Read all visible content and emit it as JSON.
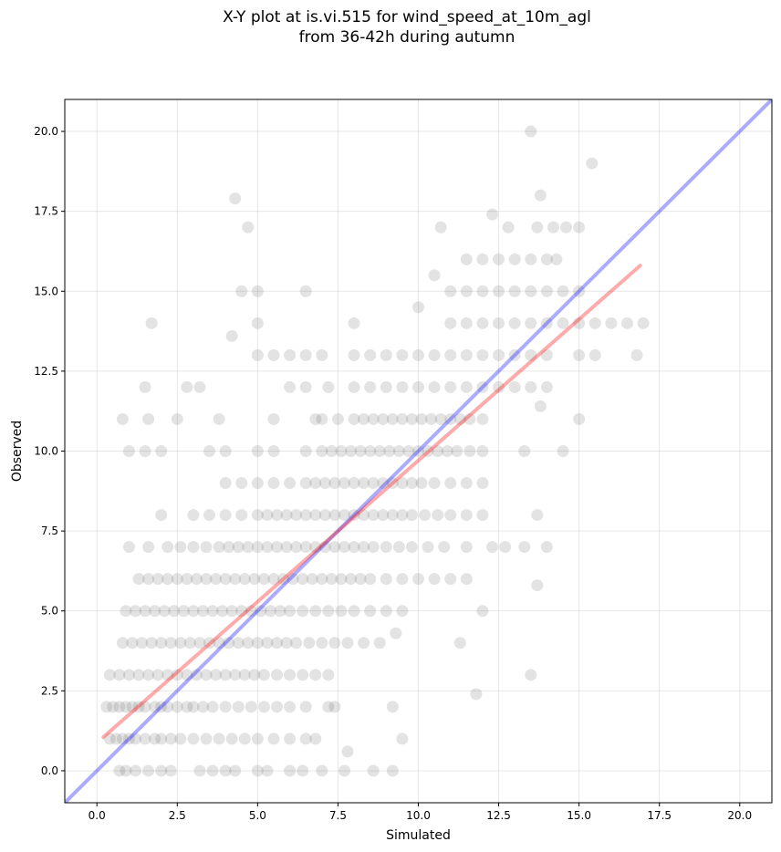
{
  "chart_data": {
    "type": "scatter",
    "title_line1": "X-Y plot at is.vi.515 for wind_speed_at_10m_agl",
    "title_line2": "from 36-42h during autumn",
    "xlabel": "Simulated",
    "ylabel": "Observed",
    "xlim": [
      -1.0,
      21.0
    ],
    "ylim": [
      -1.0,
      21.0
    ],
    "xticks": [
      "0.0",
      "2.5",
      "5.0",
      "7.5",
      "10.0",
      "12.5",
      "15.0",
      "17.5",
      "20.0"
    ],
    "yticks": [
      "0.0",
      "2.5",
      "5.0",
      "7.5",
      "10.0",
      "12.5",
      "15.0",
      "17.5",
      "20.0"
    ],
    "grid": true,
    "colors": {
      "points": "#404040",
      "identity_line": "#0000ff",
      "fit_line": "#ff0000"
    },
    "identity_line": {
      "x": [
        -1.0,
        21.0
      ],
      "y": [
        -1.0,
        21.0
      ]
    },
    "fit_line": {
      "x": [
        0.2,
        16.9
      ],
      "y": [
        1.05,
        15.8
      ]
    },
    "points": [
      [
        0.3,
        2
      ],
      [
        0.5,
        2
      ],
      [
        0.7,
        2
      ],
      [
        0.9,
        2
      ],
      [
        1.1,
        2
      ],
      [
        1.3,
        2
      ],
      [
        1.5,
        2
      ],
      [
        1.8,
        2
      ],
      [
        2.0,
        2
      ],
      [
        2.2,
        2
      ],
      [
        2.5,
        2
      ],
      [
        2.8,
        2
      ],
      [
        3.0,
        2
      ],
      [
        3.3,
        2
      ],
      [
        3.6,
        2
      ],
      [
        4.0,
        2
      ],
      [
        4.4,
        2
      ],
      [
        4.8,
        2
      ],
      [
        5.2,
        2
      ],
      [
        5.6,
        2
      ],
      [
        6.0,
        2
      ],
      [
        6.5,
        2
      ],
      [
        7.2,
        2
      ],
      [
        7.4,
        2
      ],
      [
        9.2,
        2
      ],
      [
        11.8,
        2.4
      ],
      [
        0.4,
        1
      ],
      [
        0.6,
        1
      ],
      [
        0.8,
        1
      ],
      [
        1.0,
        1
      ],
      [
        1.2,
        1
      ],
      [
        1.5,
        1
      ],
      [
        1.8,
        1
      ],
      [
        2.0,
        1
      ],
      [
        2.3,
        1
      ],
      [
        2.6,
        1
      ],
      [
        3.0,
        1
      ],
      [
        3.4,
        1
      ],
      [
        3.8,
        1
      ],
      [
        4.2,
        1
      ],
      [
        4.6,
        1
      ],
      [
        5.0,
        1
      ],
      [
        5.5,
        1
      ],
      [
        6.0,
        1
      ],
      [
        6.5,
        1
      ],
      [
        6.8,
        1
      ],
      [
        7.8,
        0.6
      ],
      [
        9.5,
        1
      ],
      [
        0.7,
        0
      ],
      [
        0.9,
        0
      ],
      [
        1.2,
        0
      ],
      [
        1.6,
        0
      ],
      [
        2.0,
        0
      ],
      [
        2.3,
        0
      ],
      [
        3.2,
        0
      ],
      [
        3.6,
        0
      ],
      [
        4.0,
        0
      ],
      [
        4.3,
        0
      ],
      [
        5.0,
        0
      ],
      [
        5.3,
        0
      ],
      [
        6.0,
        0
      ],
      [
        6.4,
        0
      ],
      [
        7.0,
        0
      ],
      [
        7.7,
        0
      ],
      [
        8.6,
        0
      ],
      [
        9.2,
        0
      ],
      [
        0.4,
        3
      ],
      [
        0.7,
        3
      ],
      [
        1.0,
        3
      ],
      [
        1.3,
        3
      ],
      [
        1.6,
        3
      ],
      [
        1.9,
        3
      ],
      [
        2.2,
        3
      ],
      [
        2.5,
        3
      ],
      [
        2.8,
        3
      ],
      [
        3.1,
        3
      ],
      [
        3.4,
        3
      ],
      [
        3.7,
        3
      ],
      [
        4.0,
        3
      ],
      [
        4.3,
        3
      ],
      [
        4.6,
        3
      ],
      [
        4.9,
        3
      ],
      [
        5.2,
        3
      ],
      [
        5.6,
        3
      ],
      [
        6.0,
        3
      ],
      [
        6.4,
        3
      ],
      [
        6.8,
        3
      ],
      [
        7.2,
        3
      ],
      [
        13.5,
        3
      ],
      [
        0.8,
        4
      ],
      [
        1.1,
        4
      ],
      [
        1.4,
        4
      ],
      [
        1.7,
        4
      ],
      [
        2.0,
        4
      ],
      [
        2.3,
        4
      ],
      [
        2.6,
        4
      ],
      [
        2.9,
        4
      ],
      [
        3.2,
        4
      ],
      [
        3.5,
        4
      ],
      [
        3.8,
        4
      ],
      [
        4.1,
        4
      ],
      [
        4.4,
        4
      ],
      [
        4.7,
        4
      ],
      [
        5.0,
        4
      ],
      [
        5.3,
        4
      ],
      [
        5.6,
        4
      ],
      [
        5.9,
        4
      ],
      [
        6.2,
        4
      ],
      [
        6.6,
        4
      ],
      [
        7.0,
        4
      ],
      [
        7.4,
        4
      ],
      [
        7.8,
        4
      ],
      [
        8.3,
        4
      ],
      [
        8.8,
        4
      ],
      [
        9.3,
        4.3
      ],
      [
        11.3,
        4
      ],
      [
        0.9,
        5
      ],
      [
        1.2,
        5
      ],
      [
        1.5,
        5
      ],
      [
        1.8,
        5
      ],
      [
        2.1,
        5
      ],
      [
        2.4,
        5
      ],
      [
        2.7,
        5
      ],
      [
        3.0,
        5
      ],
      [
        3.3,
        5
      ],
      [
        3.6,
        5
      ],
      [
        3.9,
        5
      ],
      [
        4.2,
        5
      ],
      [
        4.5,
        5
      ],
      [
        4.8,
        5
      ],
      [
        5.1,
        5
      ],
      [
        5.4,
        5
      ],
      [
        5.7,
        5
      ],
      [
        6.0,
        5
      ],
      [
        6.4,
        5
      ],
      [
        6.8,
        5
      ],
      [
        7.2,
        5
      ],
      [
        7.6,
        5
      ],
      [
        8.0,
        5
      ],
      [
        8.5,
        5
      ],
      [
        9.0,
        5
      ],
      [
        9.5,
        5
      ],
      [
        12.0,
        5
      ],
      [
        1.3,
        6
      ],
      [
        1.6,
        6
      ],
      [
        1.9,
        6
      ],
      [
        2.2,
        6
      ],
      [
        2.5,
        6
      ],
      [
        2.8,
        6
      ],
      [
        3.1,
        6
      ],
      [
        3.4,
        6
      ],
      [
        3.7,
        6
      ],
      [
        4.0,
        6
      ],
      [
        4.3,
        6
      ],
      [
        4.6,
        6
      ],
      [
        4.9,
        6
      ],
      [
        5.2,
        6
      ],
      [
        5.5,
        6
      ],
      [
        5.8,
        6
      ],
      [
        6.1,
        6
      ],
      [
        6.4,
        6
      ],
      [
        6.7,
        6
      ],
      [
        7.0,
        6
      ],
      [
        7.3,
        6
      ],
      [
        7.6,
        6
      ],
      [
        7.9,
        6
      ],
      [
        8.2,
        6
      ],
      [
        8.5,
        6
      ],
      [
        9.0,
        6
      ],
      [
        9.5,
        6
      ],
      [
        10.0,
        6
      ],
      [
        10.5,
        6
      ],
      [
        11.0,
        6
      ],
      [
        11.5,
        6
      ],
      [
        13.7,
        5.8
      ],
      [
        1.0,
        7
      ],
      [
        1.6,
        7
      ],
      [
        2.2,
        7
      ],
      [
        2.6,
        7
      ],
      [
        3.0,
        7
      ],
      [
        3.4,
        7
      ],
      [
        3.8,
        7
      ],
      [
        4.1,
        7
      ],
      [
        4.4,
        7
      ],
      [
        4.7,
        7
      ],
      [
        5.0,
        7
      ],
      [
        5.3,
        7
      ],
      [
        5.6,
        7
      ],
      [
        5.9,
        7
      ],
      [
        6.2,
        7
      ],
      [
        6.5,
        7
      ],
      [
        6.8,
        7
      ],
      [
        7.1,
        7
      ],
      [
        7.4,
        7
      ],
      [
        7.7,
        7
      ],
      [
        8.0,
        7
      ],
      [
        8.3,
        7
      ],
      [
        8.6,
        7
      ],
      [
        9.0,
        7
      ],
      [
        9.4,
        7
      ],
      [
        9.8,
        7
      ],
      [
        10.3,
        7
      ],
      [
        10.8,
        7
      ],
      [
        11.5,
        7
      ],
      [
        12.3,
        7
      ],
      [
        12.7,
        7
      ],
      [
        13.3,
        7
      ],
      [
        14.0,
        7
      ],
      [
        2.0,
        8
      ],
      [
        3.0,
        8
      ],
      [
        3.5,
        8
      ],
      [
        4.0,
        8
      ],
      [
        4.5,
        8
      ],
      [
        5.0,
        8
      ],
      [
        5.3,
        8
      ],
      [
        5.6,
        8
      ],
      [
        5.9,
        8
      ],
      [
        6.2,
        8
      ],
      [
        6.5,
        8
      ],
      [
        6.8,
        8
      ],
      [
        7.1,
        8
      ],
      [
        7.4,
        8
      ],
      [
        7.7,
        8
      ],
      [
        8.0,
        8
      ],
      [
        8.3,
        8
      ],
      [
        8.6,
        8
      ],
      [
        8.9,
        8
      ],
      [
        9.2,
        8
      ],
      [
        9.5,
        8
      ],
      [
        9.8,
        8
      ],
      [
        10.2,
        8
      ],
      [
        10.6,
        8
      ],
      [
        11.0,
        8
      ],
      [
        11.5,
        8
      ],
      [
        12.0,
        8
      ],
      [
        13.7,
        8
      ],
      [
        4.0,
        9
      ],
      [
        4.5,
        9
      ],
      [
        5.0,
        9
      ],
      [
        5.5,
        9
      ],
      [
        6.0,
        9
      ],
      [
        6.5,
        9
      ],
      [
        6.8,
        9
      ],
      [
        7.1,
        9
      ],
      [
        7.4,
        9
      ],
      [
        7.7,
        9
      ],
      [
        8.0,
        9
      ],
      [
        8.3,
        9
      ],
      [
        8.6,
        9
      ],
      [
        8.9,
        9
      ],
      [
        9.2,
        9
      ],
      [
        9.5,
        9
      ],
      [
        9.8,
        9
      ],
      [
        10.1,
        9
      ],
      [
        10.5,
        9
      ],
      [
        11.0,
        9
      ],
      [
        11.5,
        9
      ],
      [
        12.0,
        9
      ],
      [
        1.0,
        10
      ],
      [
        1.5,
        10
      ],
      [
        2.0,
        10
      ],
      [
        3.5,
        10
      ],
      [
        4.0,
        10
      ],
      [
        5.0,
        10
      ],
      [
        5.5,
        10
      ],
      [
        6.5,
        10
      ],
      [
        7.0,
        10
      ],
      [
        7.3,
        10
      ],
      [
        7.6,
        10
      ],
      [
        7.9,
        10
      ],
      [
        8.2,
        10
      ],
      [
        8.5,
        10
      ],
      [
        8.8,
        10
      ],
      [
        9.1,
        10
      ],
      [
        9.4,
        10
      ],
      [
        9.7,
        10
      ],
      [
        10.0,
        10
      ],
      [
        10.3,
        10
      ],
      [
        10.6,
        10
      ],
      [
        10.9,
        10
      ],
      [
        11.2,
        10
      ],
      [
        11.6,
        10
      ],
      [
        12.0,
        10
      ],
      [
        13.3,
        10
      ],
      [
        14.5,
        10
      ],
      [
        0.8,
        11
      ],
      [
        1.6,
        11
      ],
      [
        2.5,
        11
      ],
      [
        3.8,
        11
      ],
      [
        5.5,
        11
      ],
      [
        6.8,
        11
      ],
      [
        7.0,
        11
      ],
      [
        7.5,
        11
      ],
      [
        8.0,
        11
      ],
      [
        8.3,
        11
      ],
      [
        8.6,
        11
      ],
      [
        8.9,
        11
      ],
      [
        9.2,
        11
      ],
      [
        9.5,
        11
      ],
      [
        9.8,
        11
      ],
      [
        10.1,
        11
      ],
      [
        10.4,
        11
      ],
      [
        10.7,
        11
      ],
      [
        11.0,
        11
      ],
      [
        11.3,
        11
      ],
      [
        11.6,
        11
      ],
      [
        12.0,
        11
      ],
      [
        13.8,
        11.4
      ],
      [
        15.0,
        11
      ],
      [
        1.5,
        12
      ],
      [
        2.8,
        12
      ],
      [
        3.2,
        12
      ],
      [
        6.0,
        12
      ],
      [
        6.5,
        12
      ],
      [
        7.2,
        12
      ],
      [
        8.0,
        12
      ],
      [
        8.5,
        12
      ],
      [
        9.0,
        12
      ],
      [
        9.5,
        12
      ],
      [
        10.0,
        12
      ],
      [
        10.5,
        12
      ],
      [
        11.0,
        12
      ],
      [
        11.5,
        12
      ],
      [
        12.0,
        12
      ],
      [
        12.5,
        12
      ],
      [
        13.0,
        12
      ],
      [
        13.5,
        12
      ],
      [
        14.0,
        12
      ],
      [
        5.0,
        13
      ],
      [
        5.5,
        13
      ],
      [
        6.0,
        13
      ],
      [
        6.5,
        13
      ],
      [
        7.0,
        13
      ],
      [
        8.0,
        13
      ],
      [
        8.5,
        13
      ],
      [
        9.0,
        13
      ],
      [
        9.5,
        13
      ],
      [
        10.0,
        13
      ],
      [
        10.5,
        13
      ],
      [
        11.0,
        13
      ],
      [
        11.5,
        13
      ],
      [
        12.0,
        13
      ],
      [
        12.5,
        13
      ],
      [
        13.0,
        13
      ],
      [
        13.5,
        13
      ],
      [
        14.0,
        13
      ],
      [
        15.0,
        13
      ],
      [
        15.5,
        13
      ],
      [
        16.8,
        13
      ],
      [
        1.7,
        14
      ],
      [
        4.2,
        13.6
      ],
      [
        5.0,
        14
      ],
      [
        8.0,
        14
      ],
      [
        10.0,
        14.5
      ],
      [
        11.0,
        14
      ],
      [
        11.5,
        14
      ],
      [
        12.0,
        14
      ],
      [
        12.5,
        14
      ],
      [
        13.0,
        14
      ],
      [
        13.5,
        14
      ],
      [
        14.0,
        14
      ],
      [
        14.5,
        14
      ],
      [
        15.0,
        14
      ],
      [
        15.5,
        14
      ],
      [
        16.0,
        14
      ],
      [
        16.5,
        14
      ],
      [
        17.0,
        14
      ],
      [
        4.5,
        15
      ],
      [
        5.0,
        15
      ],
      [
        6.5,
        15
      ],
      [
        11.0,
        15
      ],
      [
        11.5,
        15
      ],
      [
        12.0,
        15
      ],
      [
        12.5,
        15
      ],
      [
        13.0,
        15
      ],
      [
        13.5,
        15
      ],
      [
        14.0,
        15
      ],
      [
        14.5,
        15
      ],
      [
        15.0,
        15
      ],
      [
        10.5,
        15.5
      ],
      [
        11.5,
        16
      ],
      [
        12.0,
        16
      ],
      [
        12.5,
        16
      ],
      [
        13.0,
        16
      ],
      [
        13.5,
        16
      ],
      [
        14.0,
        16
      ],
      [
        14.3,
        16
      ],
      [
        10.7,
        17
      ],
      [
        12.3,
        17.4
      ],
      [
        12.8,
        17
      ],
      [
        13.7,
        17
      ],
      [
        14.2,
        17
      ],
      [
        14.6,
        17
      ],
      [
        15.0,
        17
      ],
      [
        4.3,
        17.9
      ],
      [
        4.7,
        17
      ],
      [
        13.8,
        18
      ],
      [
        15.4,
        19
      ],
      [
        13.5,
        20
      ]
    ]
  }
}
